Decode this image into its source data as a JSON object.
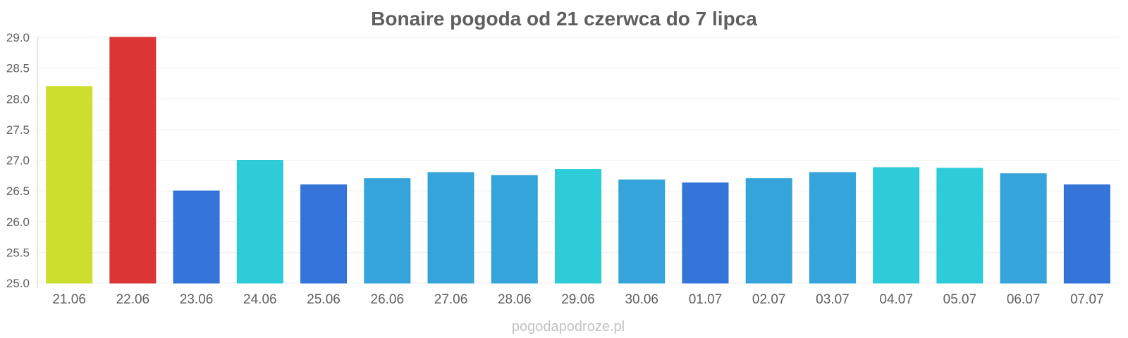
{
  "chart_data": {
    "type": "bar",
    "title": "Bonaire pogoda od 21 czerwca do 7 lipca",
    "categories": [
      "21.06",
      "22.06",
      "23.06",
      "24.06",
      "25.06",
      "26.06",
      "27.06",
      "28.06",
      "29.06",
      "30.06",
      "01.07",
      "02.07",
      "03.07",
      "04.07",
      "05.07",
      "06.07",
      "07.07"
    ],
    "values": [
      28.2,
      29.0,
      26.5,
      27.0,
      26.6,
      26.7,
      26.8,
      26.75,
      26.85,
      26.68,
      26.63,
      26.7,
      26.8,
      26.88,
      26.87,
      26.78,
      26.6
    ],
    "colors": [
      "#cbdc21",
      "#da2a2a",
      "#2a6ed8",
      "#22c9d6",
      "#2a6ed8",
      "#2a9fd8",
      "#2a9fd8",
      "#2a9fd8",
      "#22c9d6",
      "#2a9fd8",
      "#2a6ed8",
      "#2a9fd8",
      "#2a9fd8",
      "#22c9d6",
      "#22c9d6",
      "#2a9fd8",
      "#2a6ed8"
    ],
    "ylim": [
      25.0,
      29.0
    ],
    "yticks": [
      "25.0",
      "25.5",
      "26.0",
      "26.5",
      "27.0",
      "27.5",
      "28.0",
      "28.5",
      "29.0"
    ],
    "xlabel": "",
    "ylabel": "",
    "grid": true,
    "legend": "none"
  },
  "watermark": "pogodapodroze.pl"
}
